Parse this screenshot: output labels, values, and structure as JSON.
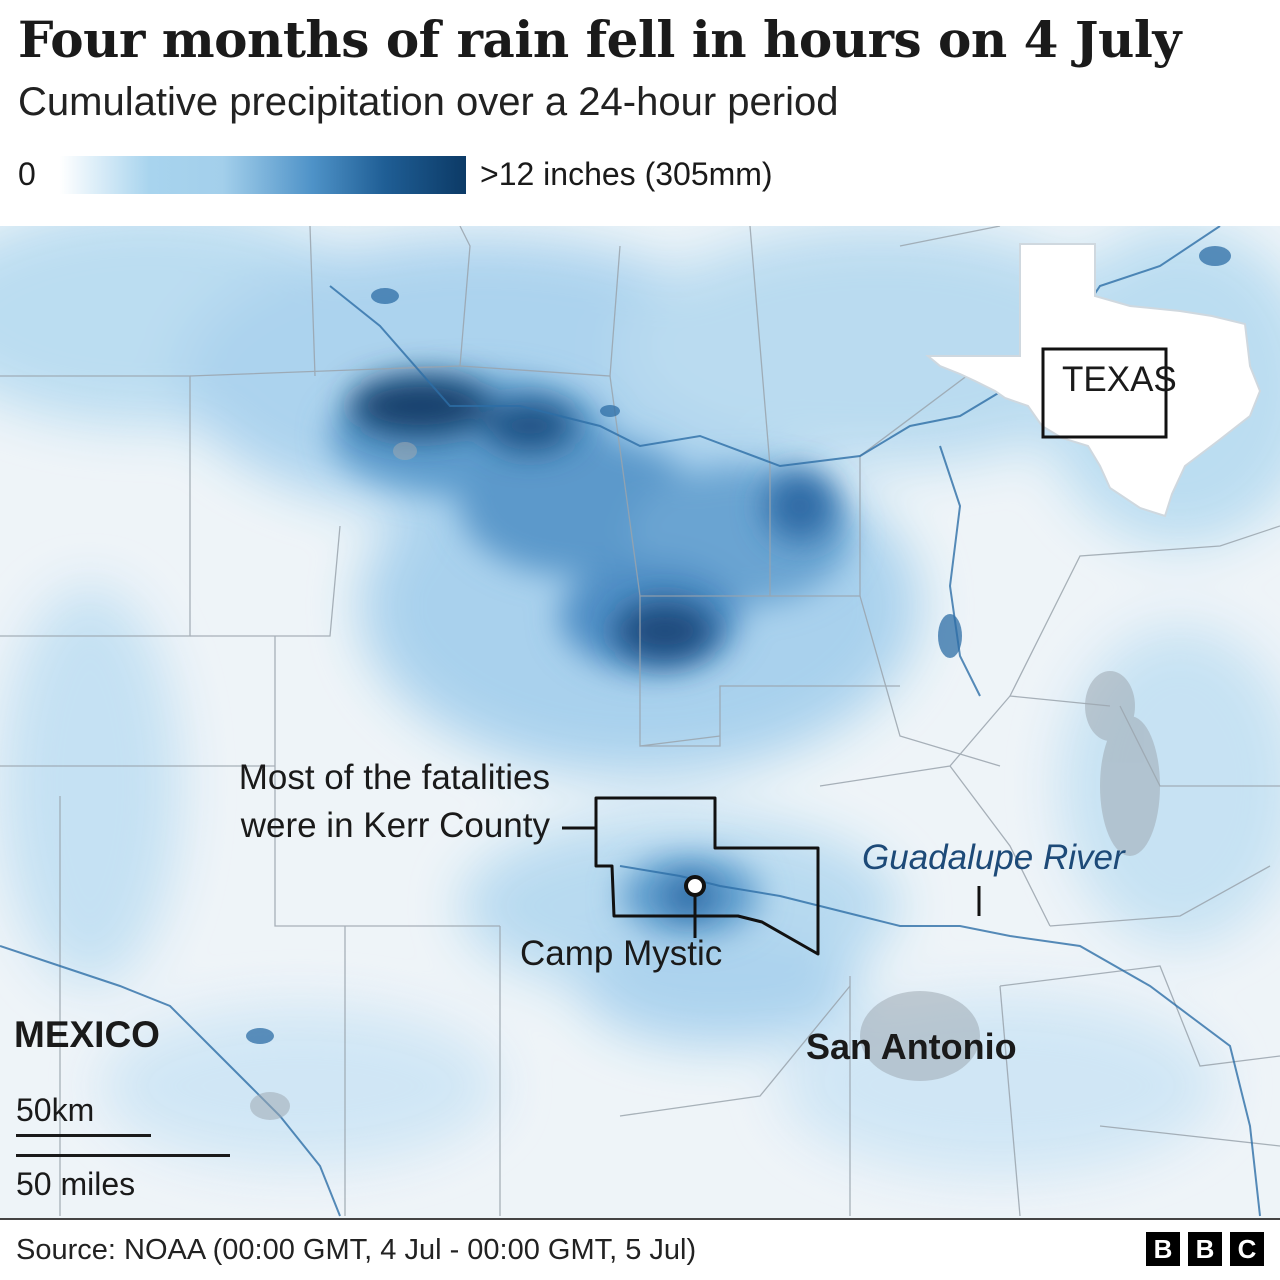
{
  "header": {
    "title": "Four months of rain fell in hours on 4 July",
    "subtitle": "Cumulative precipitation over a 24-hour period"
  },
  "legend": {
    "min_label": "0",
    "max_label": ">12 inches (305mm)",
    "colors": [
      "#ffffff",
      "#a8d4ee",
      "#4f93c8",
      "#1f5e95",
      "#0c3a66"
    ]
  },
  "map": {
    "annotations": {
      "kerr_county": "Most of the fatalities were in Kerr County",
      "kerr_county_line1": "Most of the fatalities",
      "kerr_county_line2": "were in Kerr County",
      "camp_mystic": "Camp Mystic",
      "river": "Guadalupe River",
      "city": "San Antonio",
      "country": "MEXICO",
      "inset_state": "TEXAS"
    },
    "scale": {
      "km": "50km",
      "miles": "50 miles"
    },
    "colors": {
      "river": "#2d6ea6",
      "boundary": "#9aa4ad",
      "county_outline": "#111111"
    }
  },
  "footer": {
    "source": "Source: NOAA (00:00 GMT, 4 Jul - 00:00 GMT, 5 Jul)",
    "logo": [
      "B",
      "B",
      "C"
    ]
  }
}
